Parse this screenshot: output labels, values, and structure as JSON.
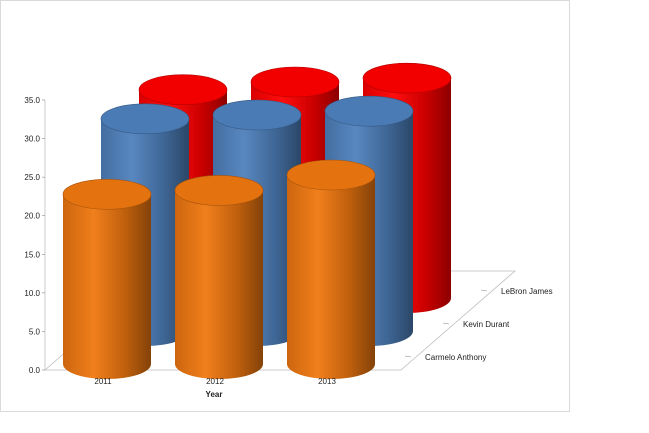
{
  "chart_data": {
    "type": "bar",
    "style": "3d-cylinder",
    "xlabel": "Year",
    "ylabel": "",
    "categories": [
      "2011",
      "2012",
      "2013"
    ],
    "ylim": [
      0,
      35
    ],
    "yticks": [
      "0.0",
      "5.0",
      "10.0",
      "15.0",
      "20.0",
      "25.0",
      "30.0",
      "35.0"
    ],
    "series": [
      {
        "name": "Carmelo Anthony",
        "values": [
          22.0,
          22.5,
          24.5
        ],
        "color": "#f07810"
      },
      {
        "name": "Kevin Durant",
        "values": [
          27.5,
          28.0,
          28.5
        ],
        "color": "#4f81bd"
      },
      {
        "name": "LeBron James",
        "values": [
          27.0,
          28.0,
          28.5
        ],
        "color": "#ff0000"
      }
    ]
  }
}
